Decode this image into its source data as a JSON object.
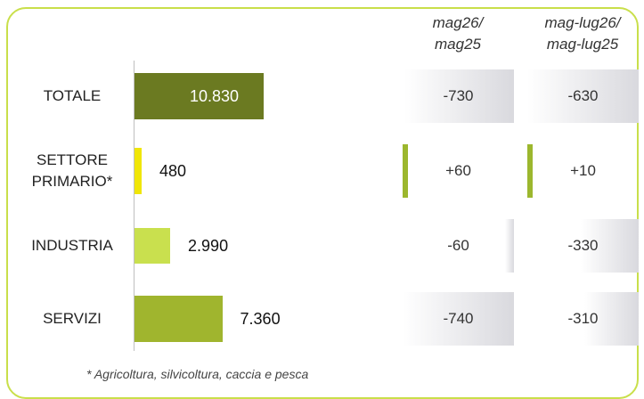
{
  "chart_data": {
    "type": "bar",
    "orientation": "horizontal",
    "categories": [
      "TOTALE",
      "SETTORE PRIMARIO*",
      "INDUSTRIA",
      "SERVIZI"
    ],
    "values": [
      10830,
      480,
      2990,
      7360
    ],
    "value_labels": [
      "10.830",
      "480",
      "2.990",
      "7.360"
    ],
    "bar_colors": [
      "#6b7a21",
      "#f0e608",
      "#c9e04e",
      "#a0b52e"
    ],
    "comparison_columns": [
      {
        "header": "mag26/ mag25",
        "values": [
          -730,
          60,
          -60,
          -740
        ],
        "labels": [
          "-730",
          "+60",
          "-60",
          "-740"
        ]
      },
      {
        "header": "mag-lug26/ mag-lug25",
        "values": [
          -630,
          10,
          -330,
          -310
        ],
        "labels": [
          "-630",
          "+10",
          "-330",
          "-310"
        ]
      }
    ],
    "footnote": "* Agricoltura, silvicoltura, caccia e pesca",
    "colors": {
      "frame": "#c9df4a",
      "negative_cell": "#d9d9de",
      "positive_cell": "#9cb72e"
    }
  }
}
